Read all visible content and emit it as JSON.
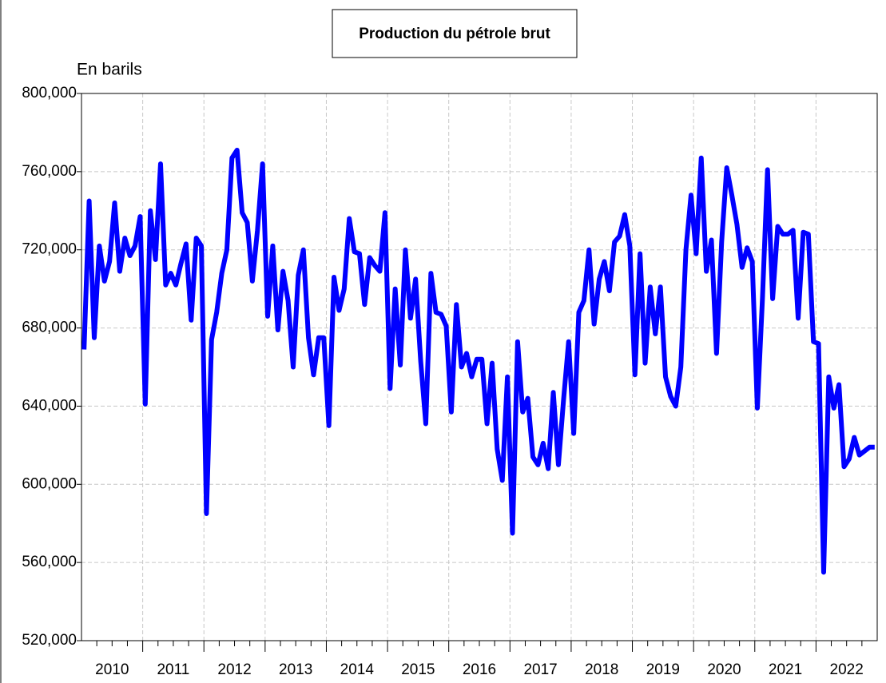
{
  "chart_data": {
    "type": "line",
    "title": "Production du pétrole brut",
    "ylabel": "En barils",
    "x": [
      "2010-01",
      "2010-02",
      "2010-03",
      "2010-04",
      "2010-05",
      "2010-06",
      "2010-07",
      "2010-08",
      "2010-09",
      "2010-10",
      "2010-11",
      "2010-12",
      "2011-01",
      "2011-02",
      "2011-03",
      "2011-04",
      "2011-05",
      "2011-06",
      "2011-07",
      "2011-08",
      "2011-09",
      "2011-10",
      "2011-11",
      "2011-12",
      "2012-01",
      "2012-02",
      "2012-03",
      "2012-04",
      "2012-05",
      "2012-06",
      "2012-07",
      "2012-08",
      "2012-09",
      "2012-10",
      "2012-11",
      "2012-12",
      "2013-01",
      "2013-02",
      "2013-03",
      "2013-04",
      "2013-05",
      "2013-06",
      "2013-07",
      "2013-08",
      "2013-09",
      "2013-10",
      "2013-11",
      "2013-12",
      "2014-01",
      "2014-02",
      "2014-03",
      "2014-04",
      "2014-05",
      "2014-06",
      "2014-07",
      "2014-08",
      "2014-09",
      "2014-10",
      "2014-11",
      "2014-12",
      "2015-01",
      "2015-02",
      "2015-03",
      "2015-04",
      "2015-05",
      "2015-06",
      "2015-07",
      "2015-08",
      "2015-09",
      "2015-10",
      "2015-11",
      "2015-12",
      "2016-01",
      "2016-02",
      "2016-03",
      "2016-04",
      "2016-05",
      "2016-06",
      "2016-07",
      "2016-08",
      "2016-09",
      "2016-10",
      "2016-11",
      "2016-12",
      "2017-01",
      "2017-02",
      "2017-03",
      "2017-04",
      "2017-05",
      "2017-06",
      "2017-07",
      "2017-08",
      "2017-09",
      "2017-10",
      "2017-11",
      "2017-12",
      "2018-01",
      "2018-02",
      "2018-03",
      "2018-04",
      "2018-05",
      "2018-06",
      "2018-07",
      "2018-08",
      "2018-09",
      "2018-10",
      "2018-11",
      "2018-12",
      "2019-01",
      "2019-02",
      "2019-03",
      "2019-04",
      "2019-05",
      "2019-06",
      "2019-07",
      "2019-08",
      "2019-09",
      "2019-10",
      "2019-11",
      "2019-12",
      "2020-01",
      "2020-02",
      "2020-03",
      "2020-04",
      "2020-05",
      "2020-06",
      "2020-07",
      "2020-08",
      "2020-09",
      "2020-10",
      "2020-11",
      "2020-12",
      "2021-01",
      "2021-02",
      "2021-03",
      "2021-04",
      "2021-05",
      "2021-06",
      "2021-07",
      "2021-08",
      "2021-09",
      "2021-10",
      "2021-11",
      "2021-12",
      "2022-01",
      "2022-02",
      "2022-03",
      "2022-04",
      "2022-05",
      "2022-06",
      "2022-07",
      "2022-08",
      "2022-09",
      "2022-10",
      "2022-11",
      "2022-12"
    ],
    "series": [
      {
        "name": "Production du pétrole brut",
        "color": "#0000ff",
        "values": [
          669000,
          745000,
          675000,
          722000,
          704000,
          714000,
          744000,
          709000,
          726000,
          717000,
          722000,
          737000,
          641000,
          740000,
          715000,
          764000,
          702000,
          708000,
          702000,
          713000,
          723000,
          684000,
          726000,
          722000,
          585000,
          674000,
          688000,
          708000,
          720000,
          767000,
          771000,
          739000,
          734000,
          704000,
          730000,
          764000,
          686000,
          722000,
          679000,
          709000,
          694000,
          660000,
          707000,
          720000,
          675000,
          656000,
          675000,
          675000,
          630000,
          706000,
          689000,
          700000,
          736000,
          719000,
          718000,
          692000,
          716000,
          712000,
          709000,
          739000,
          649000,
          700000,
          661000,
          720000,
          685000,
          705000,
          663000,
          631000,
          708000,
          688000,
          687000,
          681000,
          637000,
          692000,
          660000,
          667000,
          655000,
          664000,
          664000,
          631000,
          662000,
          618000,
          602000,
          655000,
          575000,
          673000,
          637000,
          644000,
          614000,
          610000,
          621000,
          608000,
          647000,
          610000,
          643000,
          673000,
          626000,
          688000,
          694000,
          720000,
          682000,
          705000,
          714000,
          699000,
          724000,
          727000,
          738000,
          722000,
          656000,
          718000,
          662000,
          701000,
          677000,
          701000,
          655000,
          645000,
          640000,
          660000,
          720000,
          748000,
          718000,
          767000,
          709000,
          725000,
          667000,
          724000,
          762000,
          748000,
          733000,
          711000,
          721000,
          714000,
          639000,
          695000,
          761000,
          695000,
          732000,
          728000,
          728000,
          730000,
          685000,
          729000,
          728000,
          673000,
          672000,
          555000,
          655000,
          639000,
          651000,
          609000,
          613000,
          624000,
          615000,
          617000,
          619000,
          619000
        ]
      }
    ],
    "xlim": [
      2010,
      2023
    ],
    "xticks": [
      2010,
      2011,
      2012,
      2013,
      2014,
      2015,
      2016,
      2017,
      2018,
      2019,
      2020,
      2021,
      2022
    ],
    "ylim": [
      520000,
      800000
    ],
    "yticks": [
      {
        "value": 520000,
        "label": "520,000"
      },
      {
        "value": 560000,
        "label": "560,000"
      },
      {
        "value": 600000,
        "label": "600,000"
      },
      {
        "value": 640000,
        "label": "640,000"
      },
      {
        "value": 680000,
        "label": "680,000"
      },
      {
        "value": 720000,
        "label": "720,000"
      },
      {
        "value": 760000,
        "label": "760,000"
      },
      {
        "value": 800000,
        "label": "800,000"
      }
    ],
    "grid": true
  }
}
